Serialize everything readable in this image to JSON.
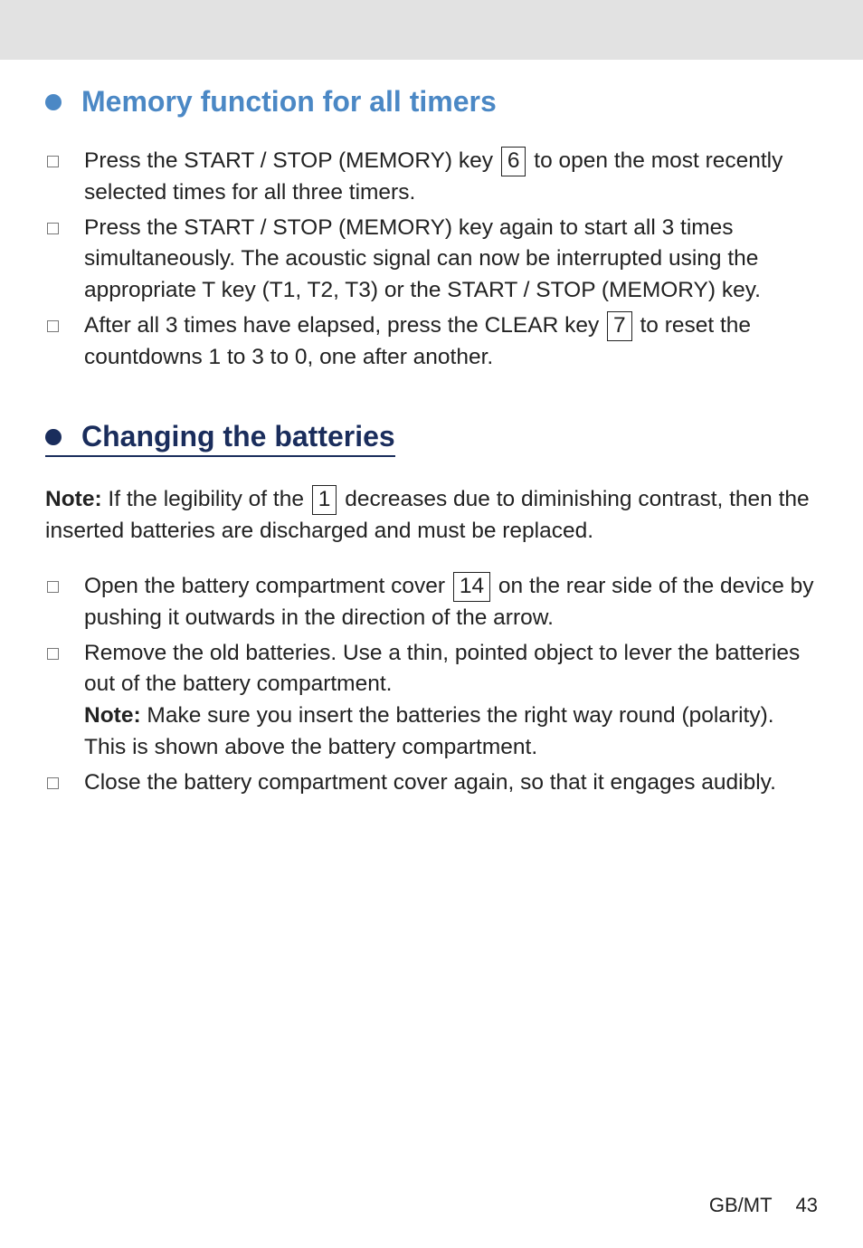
{
  "section1": {
    "title": "Memory function for all timers",
    "items": [
      {
        "pre": "Press the START / STOP (MEMORY) key ",
        "key": "6",
        "post": " to open the most recently selected times for all three timers."
      },
      {
        "pre": "Press the START / STOP (MEMORY) key again to start all 3 times simultaneously. The acoustic signal can now be interrupted using the appropriate T key (T1, T2, T3) or the START / STOP (MEMORY) key.",
        "key": null,
        "post": ""
      },
      {
        "pre": "After all 3 times have elapsed, press the CLEAR key ",
        "key": "7",
        "post": " to reset the countdowns 1 to 3 to 0, one after another."
      }
    ]
  },
  "section2": {
    "title": "Changing the batteries",
    "note_label": "Note:",
    "note_pre": " If the legibility of the ",
    "note_key": "1",
    "note_post": " decreases due to diminishing contrast, then the inserted batteries are discharged and must be replaced.",
    "items": [
      {
        "pre": "Open the battery compartment cover ",
        "key": "14",
        "post": " on the rear side of the device by pushing it outwards in the direction of the arrow."
      },
      {
        "pre": "Remove the old batteries. Use a thin, pointed object to lever the batteries out of the battery compartment.",
        "key": null,
        "post": "",
        "note_label": "Note:",
        "note_text": " Make sure you insert the batteries the right way round (polarity). This is shown above the battery compartment."
      },
      {
        "pre": "Close the battery compartment cover again, so that it engages audibly.",
        "key": null,
        "post": ""
      }
    ]
  },
  "footer": {
    "label": "GB/MT",
    "page": "43"
  }
}
